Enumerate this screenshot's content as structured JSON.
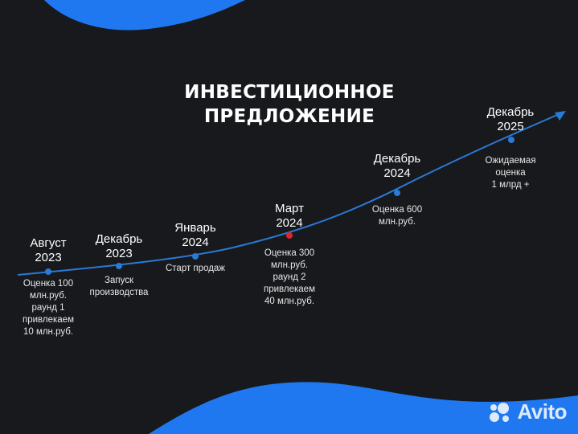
{
  "title_lines": [
    "ИНВЕСТИЦИОННОЕ",
    "ПРЕДЛОЖЕНИЕ"
  ],
  "colors": {
    "background": "#17191c",
    "accent": "#1f78f0",
    "curve": "#2a7ad6",
    "highlight": "#e0242e"
  },
  "milestones": [
    {
      "date_lines": [
        "Август",
        "2023"
      ],
      "desc_lines": [
        "Оценка 100",
        "млн.руб.",
        "раунд 1",
        "привлекаем",
        "10 млн.руб."
      ],
      "highlight": false
    },
    {
      "date_lines": [
        "Декабрь",
        "2023"
      ],
      "desc_lines": [
        "Запуск",
        "производства"
      ],
      "highlight": false
    },
    {
      "date_lines": [
        "Январь",
        "2024"
      ],
      "desc_lines": [
        "Старт продаж"
      ],
      "highlight": false
    },
    {
      "date_lines": [
        "Март",
        "2024"
      ],
      "desc_lines": [
        "Оценка 300",
        "млн.руб.",
        "раунд 2",
        "привлекаем",
        "40 млн.руб."
      ],
      "highlight": true
    },
    {
      "date_lines": [
        "Декабрь",
        "2024"
      ],
      "desc_lines": [
        "Оценка 600",
        "млн.руб."
      ],
      "highlight": false
    },
    {
      "date_lines": [
        "Декабрь",
        "2025"
      ],
      "desc_lines": [
        "Ожидаемая",
        "оценка",
        "1 млрд +"
      ],
      "highlight": false
    }
  ],
  "watermark": {
    "text": "Avito",
    "icon": "avito-logo-icon"
  }
}
